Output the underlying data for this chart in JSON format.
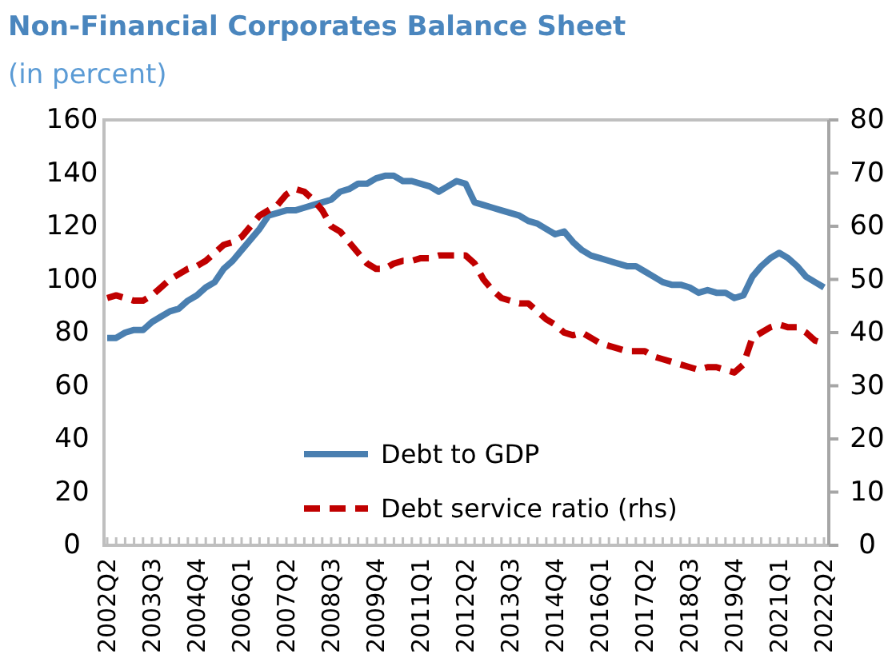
{
  "chart_data": {
    "type": "line",
    "title": "Non-Financial Corporates Balance Sheet",
    "subtitle": "(in percent)",
    "categories": [
      "2002Q2",
      null,
      null,
      null,
      null,
      "2003Q3",
      null,
      null,
      null,
      null,
      "2004Q4",
      null,
      null,
      null,
      null,
      "2006Q1",
      null,
      null,
      null,
      null,
      "2007Q2",
      null,
      null,
      null,
      null,
      "2008Q3",
      null,
      null,
      null,
      null,
      "2009Q4",
      null,
      null,
      null,
      null,
      "2011Q1",
      null,
      null,
      null,
      null,
      "2012Q2",
      null,
      null,
      null,
      null,
      "2013Q3",
      null,
      null,
      null,
      null,
      "2014Q4",
      null,
      null,
      null,
      null,
      "2016Q1",
      null,
      null,
      null,
      null,
      "2017Q2",
      null,
      null,
      null,
      null,
      "2018Q3",
      null,
      null,
      null,
      null,
      "2019Q4",
      null,
      null,
      null,
      null,
      "2021Q1",
      null,
      null,
      null,
      null,
      "2022Q2"
    ],
    "series": [
      {
        "name": "Debt to GDP",
        "color": "#4a7fb0",
        "line_style": "solid",
        "values": [
          78,
          78,
          80,
          81,
          81,
          84,
          86,
          88,
          89,
          92,
          94,
          97,
          99,
          104,
          107,
          111,
          115,
          119,
          124,
          125,
          126,
          126,
          127,
          128,
          129,
          130,
          133,
          134,
          136,
          136,
          138,
          139,
          139,
          137,
          137,
          136,
          135,
          133,
          135,
          137,
          136,
          129,
          128,
          127,
          126,
          125,
          124,
          122,
          121,
          119,
          117,
          118,
          114,
          111,
          109,
          108,
          107,
          106,
          105,
          105,
          103,
          101,
          99,
          98,
          98,
          97,
          95,
          96,
          95,
          95,
          93,
          94,
          101,
          105,
          108,
          110,
          108,
          105,
          101,
          99,
          97
        ]
      },
      {
        "name": "Debt service ratio (rhs)",
        "color": "#c00000",
        "line_style": "dashed",
        "axis": "y2",
        "values": [
          46.5,
          47,
          46.5,
          46,
          46,
          47,
          48.5,
          50,
          51,
          52,
          52.5,
          53.5,
          55,
          56.5,
          57,
          58,
          60,
          62,
          63,
          64,
          66,
          67,
          66.5,
          65,
          63,
          60,
          59,
          57,
          55,
          53,
          52,
          52,
          53,
          53.5,
          53.5,
          54,
          54,
          54.5,
          54.5,
          54.5,
          54.5,
          53,
          50,
          48,
          46.5,
          46,
          45.5,
          45.5,
          44,
          42.5,
          41.5,
          40,
          39.5,
          40,
          39,
          38,
          37.5,
          37,
          36.5,
          36.5,
          36.5,
          35.5,
          35,
          34.5,
          34,
          33.5,
          33,
          33.5,
          33.5,
          33,
          32.5,
          34,
          39,
          40,
          41,
          41.5,
          41,
          41,
          40,
          38.5,
          38
        ]
      }
    ],
    "ylim": [
      0,
      160
    ],
    "yticks": [
      0,
      20,
      40,
      60,
      80,
      100,
      120,
      140,
      160
    ],
    "y2lim": [
      0,
      80
    ],
    "y2ticks": [
      0,
      10,
      20,
      30,
      40,
      50,
      60,
      70,
      80
    ],
    "grid": false,
    "legend": "bottom",
    "marker": "none"
  }
}
